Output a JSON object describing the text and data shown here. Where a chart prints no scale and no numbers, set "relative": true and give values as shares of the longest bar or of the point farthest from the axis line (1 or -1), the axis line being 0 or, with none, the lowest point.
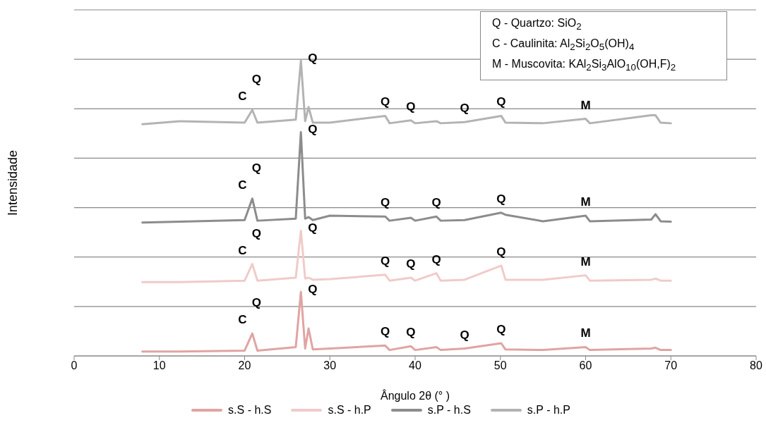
{
  "chart_data": {
    "type": "line",
    "relative": true,
    "xlabel": "Ângulo 2θ (° )",
    "ylabel": "Intensidade",
    "xlim": [
      0,
      80
    ],
    "xticks": [
      0,
      10,
      20,
      30,
      40,
      50,
      60,
      70,
      80
    ],
    "grid": "y",
    "legend": "bottom",
    "marker": "none",
    "x": [
      8,
      12.4,
      20.0,
      20.9,
      21.5,
      26.0,
      26.6,
      27.1,
      27.5,
      28,
      30,
      36.5,
      37,
      39.5,
      40,
      42.5,
      43,
      45.8,
      50.1,
      50.6,
      55,
      60,
      60.5,
      67.7,
      68.2,
      68.8,
      70
    ],
    "series": [
      {
        "name": "s.S - h.S",
        "color": "#e0a4a2",
        "values": [
          0.015,
          0.015,
          0.018,
          0.076,
          0.018,
          0.03,
          0.217,
          0.025,
          0.093,
          0.022,
          0.025,
          0.035,
          0.02,
          0.033,
          0.02,
          0.03,
          0.02,
          0.025,
          0.043,
          0.022,
          0.02,
          0.03,
          0.02,
          0.025,
          0.028,
          0.02,
          0.02
        ]
      },
      {
        "name": "s.S - h.P",
        "color": "#f0cbc9",
        "values": [
          0.25,
          0.25,
          0.255,
          0.311,
          0.255,
          0.265,
          0.424,
          0.262,
          0.265,
          0.258,
          0.26,
          0.275,
          0.255,
          0.265,
          0.255,
          0.28,
          0.255,
          0.258,
          0.306,
          0.258,
          0.258,
          0.273,
          0.255,
          0.258,
          0.262,
          0.255,
          0.255
        ]
      },
      {
        "name": "s.P - h.S",
        "color": "#8c8c8c",
        "values": [
          0.452,
          0.455,
          0.46,
          0.533,
          0.458,
          0.465,
          0.758,
          0.465,
          0.47,
          0.46,
          0.475,
          0.472,
          0.458,
          0.468,
          0.458,
          0.472,
          0.458,
          0.46,
          0.485,
          0.478,
          0.456,
          0.475,
          0.456,
          0.462,
          0.48,
          0.456,
          0.455
        ]
      },
      {
        "name": "s.P - h.P",
        "color": "#b3b3b3",
        "values": [
          0.785,
          0.795,
          0.79,
          0.833,
          0.79,
          0.8,
          1,
          0.795,
          0.843,
          0.79,
          0.79,
          0.813,
          0.788,
          0.798,
          0.788,
          0.795,
          0.788,
          0.792,
          0.813,
          0.79,
          0.788,
          0.803,
          0.788,
          0.815,
          0.815,
          0.79,
          0.788
        ]
      }
    ],
    "annotations": [
      "Q - Quartzo: SiO$_{2}$",
      "C - Caulinita: Al$_{2}$Si$_{2}$O$_{5}$(OH)$_{4}$",
      "M - Muscovita: KAl$_{2}$Si$_{3}$AlO$_{10}$(OH,F)$_{2}$",
      {
        "text": "C",
        "x": 20.9,
        "y": 0.833
      },
      {
        "text": "Q",
        "x": 20.9,
        "y": 0.833
      },
      {
        "text": "Q",
        "x": 26.6,
        "y": 1
      },
      {
        "text": "Q",
        "x": 36.5,
        "y": 0.813
      },
      {
        "text": "Q",
        "x": 39.5,
        "y": 0.798
      },
      {
        "text": "Q",
        "x": 45.8,
        "y": 0.792
      },
      {
        "text": "Q",
        "x": 50.1,
        "y": 0.813
      },
      {
        "text": "M",
        "x": 60,
        "y": 0.803
      },
      {
        "text": "C",
        "x": 20.9,
        "y": 0.533
      },
      {
        "text": "Q",
        "x": 20.9,
        "y": 0.533
      },
      {
        "text": "Q",
        "x": 26.6,
        "y": 0.758
      },
      {
        "text": "Q",
        "x": 36.5,
        "y": 0.472
      },
      {
        "text": "Q",
        "x": 42.5,
        "y": 0.472
      },
      {
        "text": "Q",
        "x": 50.1,
        "y": 0.485
      },
      {
        "text": "M",
        "x": 60,
        "y": 0.475
      },
      {
        "text": "C",
        "x": 20.9,
        "y": 0.311
      },
      {
        "text": "Q",
        "x": 20.9,
        "y": 0.311
      },
      {
        "text": "Q",
        "x": 26.6,
        "y": 0.424
      },
      {
        "text": "Q",
        "x": 36.5,
        "y": 0.275
      },
      {
        "text": "Q",
        "x": 39.5,
        "y": 0.265
      },
      {
        "text": "Q",
        "x": 42.5,
        "y": 0.28
      },
      {
        "text": "Q",
        "x": 50.1,
        "y": 0.306
      },
      {
        "text": "M",
        "x": 60,
        "y": 0.273
      },
      {
        "text": "C",
        "x": 20.9,
        "y": 0.076
      },
      {
        "text": "Q",
        "x": 20.9,
        "y": 0.076
      },
      {
        "text": "Q",
        "x": 26.6,
        "y": 0.217
      },
      {
        "text": "Q",
        "x": 36.5,
        "y": 0.035
      },
      {
        "text": "Q",
        "x": 39.5,
        "y": 0.033
      },
      {
        "text": "Q",
        "x": 45.8,
        "y": 0.025
      },
      {
        "text": "Q",
        "x": 50.1,
        "y": 0.043
      },
      {
        "text": "M",
        "x": 60,
        "y": 0.03
      }
    ]
  }
}
